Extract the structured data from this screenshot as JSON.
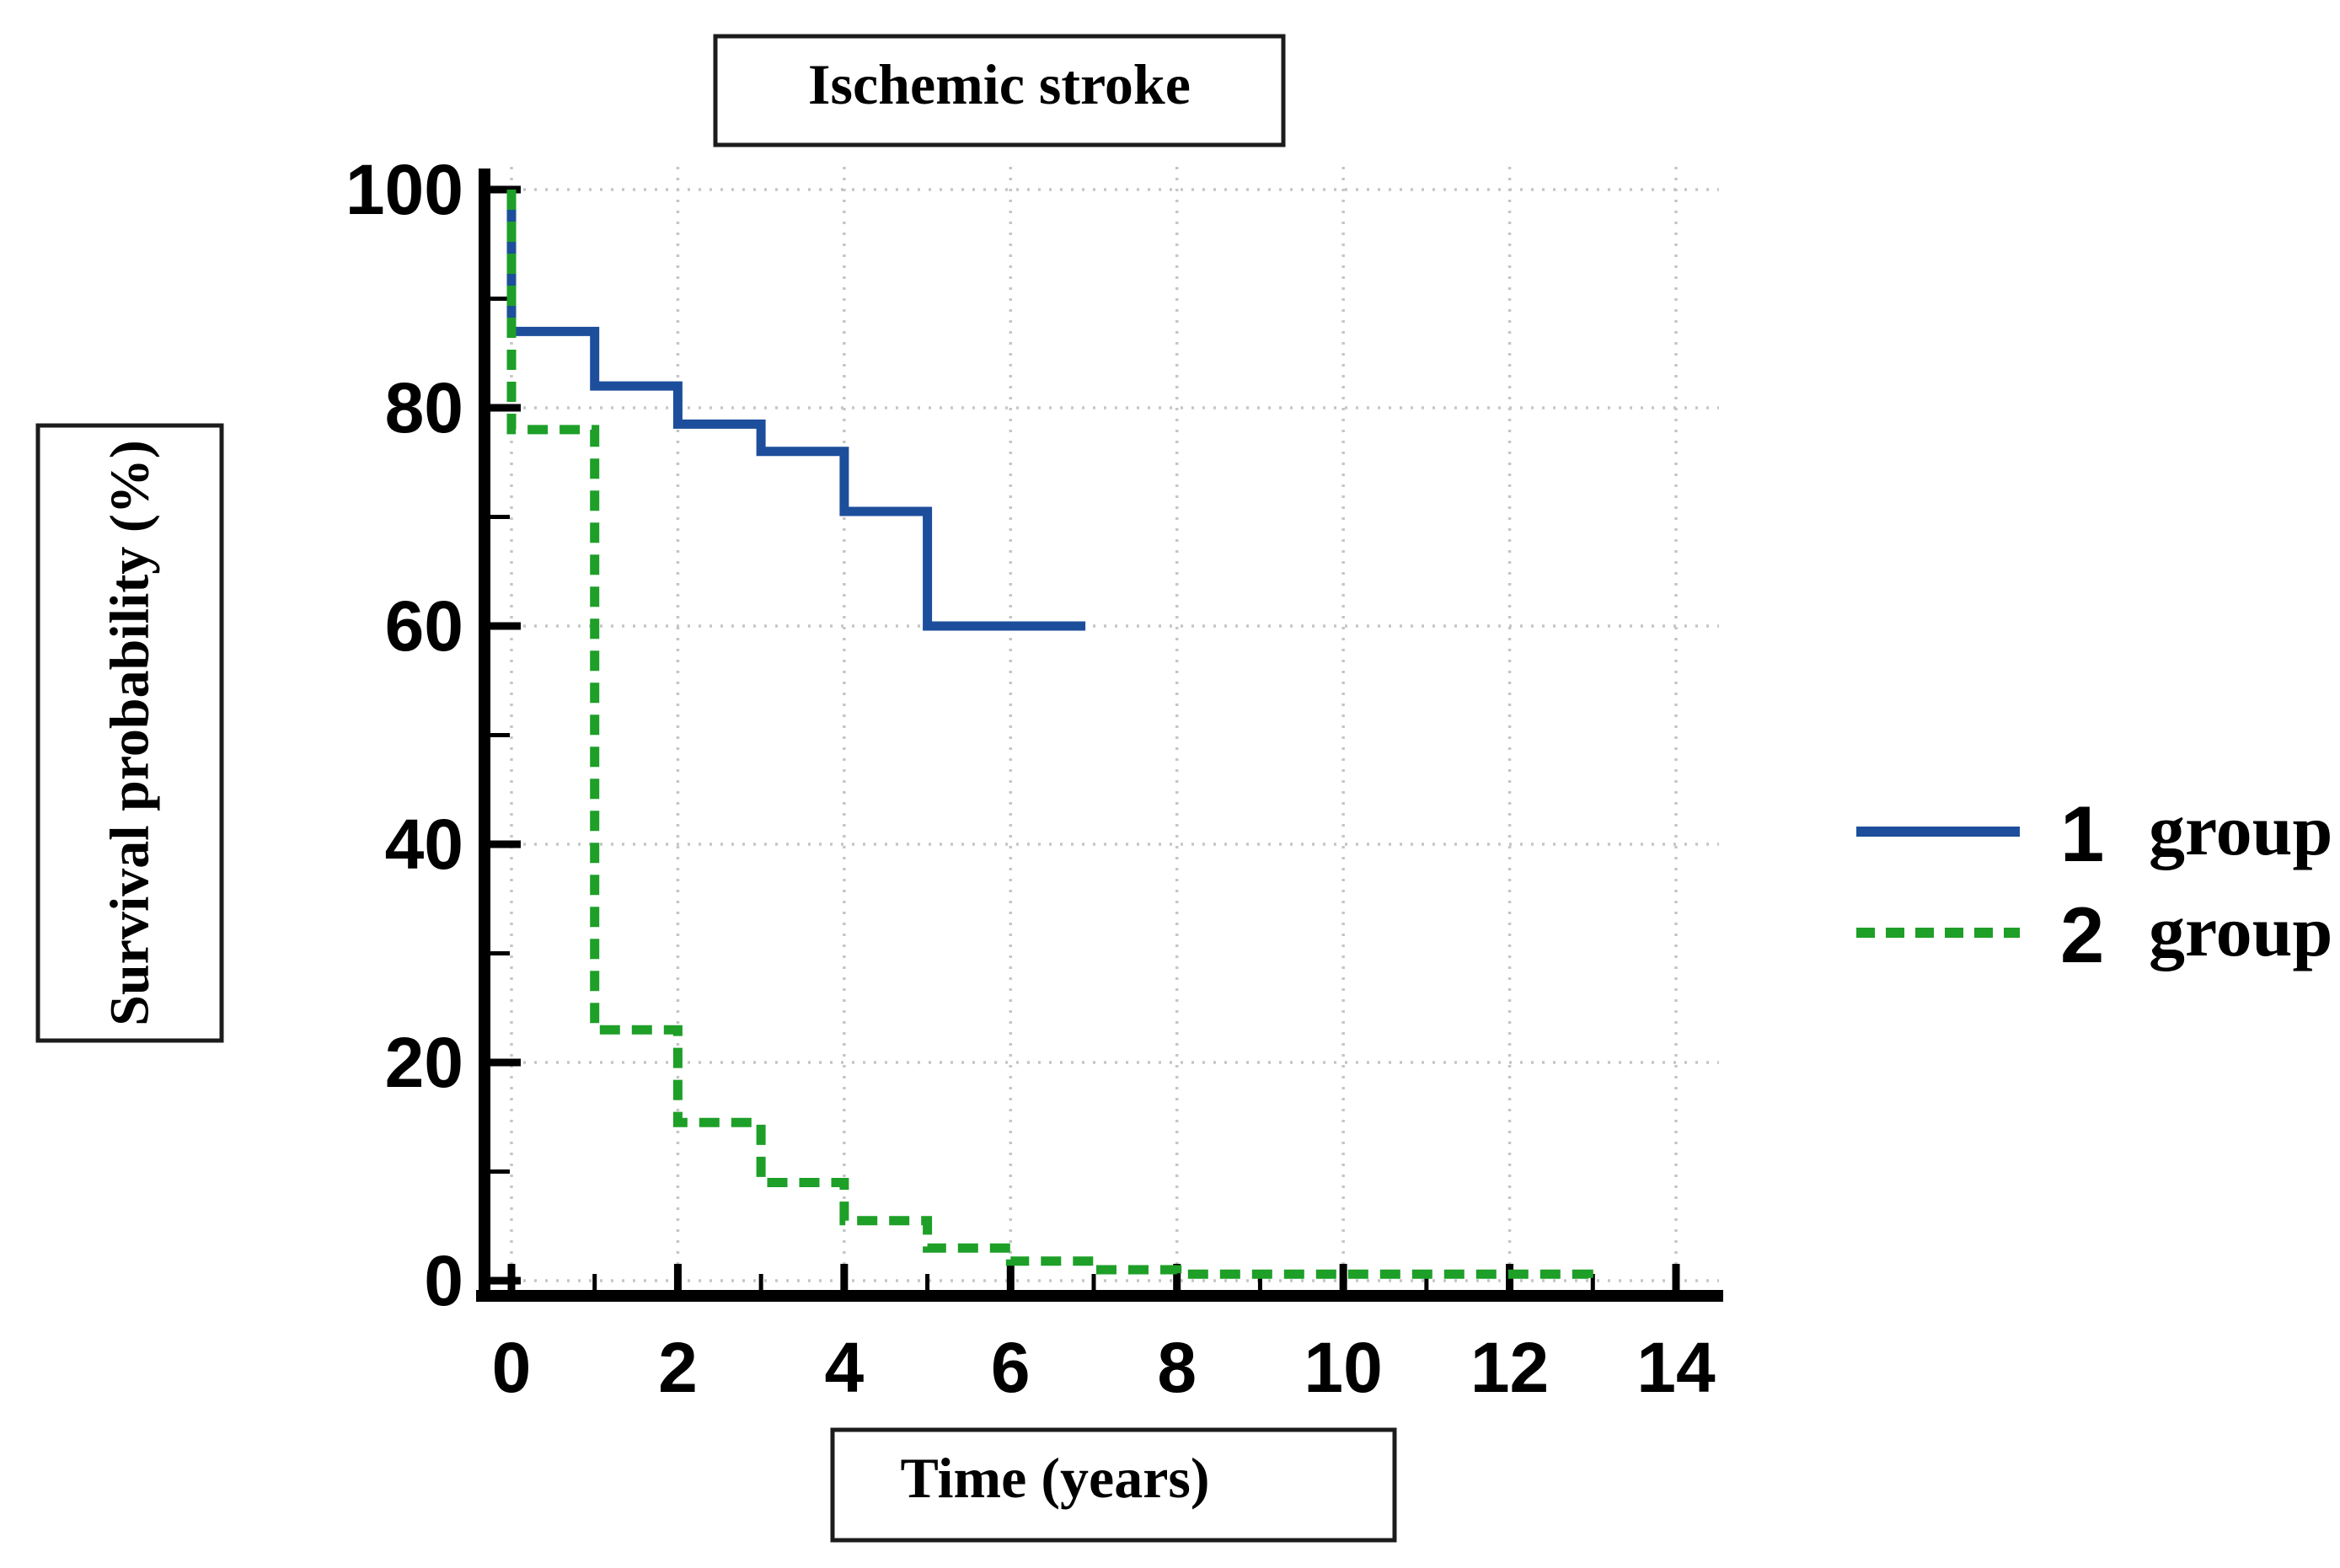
{
  "figure": {
    "title": "Ischemic stroke",
    "x_axis_label": "Time (years)",
    "y_axis_label": "Survival probability (%)"
  },
  "legend": {
    "entries": [
      {
        "number": "1",
        "label": "group",
        "style": "solid",
        "color": "#1d4e9b"
      },
      {
        "number": "2",
        "label": "group",
        "style": "dashed",
        "color": "#1e9f28"
      }
    ]
  },
  "chart_data": {
    "type": "line",
    "subtype": "kaplan-meier-step",
    "title": "Ischemic stroke",
    "xlabel": "Time (years)",
    "ylabel": "Survival probability (%)",
    "xlim": [
      0,
      14.5
    ],
    "ylim": [
      0,
      100
    ],
    "x_major_ticks": [
      0,
      2,
      4,
      6,
      8,
      10,
      12,
      14
    ],
    "x_minor_ticks": [
      1,
      3,
      5,
      7,
      9,
      11,
      13
    ],
    "y_major_ticks": [
      0,
      20,
      40,
      60,
      80,
      100
    ],
    "y_minor_ticks": [
      10,
      30,
      50,
      70,
      90
    ],
    "grid": {
      "major": true,
      "style": "dotted",
      "color": "#c5c5c5"
    },
    "legend_position": "right-outside",
    "series": [
      {
        "name": "1 group",
        "color": "#1d4e9b",
        "line_style": "solid",
        "line_width": 11,
        "steps_xy": [
          [
            0,
            100
          ],
          [
            0,
            87
          ],
          [
            1,
            87
          ],
          [
            1,
            82
          ],
          [
            2,
            82
          ],
          [
            2,
            78.5
          ],
          [
            3,
            78.5
          ],
          [
            3,
            76
          ],
          [
            4,
            76
          ],
          [
            4,
            70.5
          ],
          [
            5,
            70.5
          ],
          [
            5,
            60
          ],
          [
            6.9,
            60
          ]
        ]
      },
      {
        "name": "2 group",
        "color": "#1e9f28",
        "line_style": "dashed",
        "line_width": 11,
        "steps_xy": [
          [
            0,
            100
          ],
          [
            0,
            78
          ],
          [
            1,
            78
          ],
          [
            1,
            23
          ],
          [
            2,
            23
          ],
          [
            2,
            14.5
          ],
          [
            3,
            14.5
          ],
          [
            3,
            9
          ],
          [
            4,
            9
          ],
          [
            4,
            5.5
          ],
          [
            5,
            5.5
          ],
          [
            5,
            3
          ],
          [
            6,
            3
          ],
          [
            6,
            1.8
          ],
          [
            7,
            1.8
          ],
          [
            7,
            1
          ],
          [
            8,
            1
          ],
          [
            8,
            0.6
          ],
          [
            12.95,
            0.6
          ],
          [
            12.95,
            0.15
          ]
        ]
      }
    ]
  }
}
